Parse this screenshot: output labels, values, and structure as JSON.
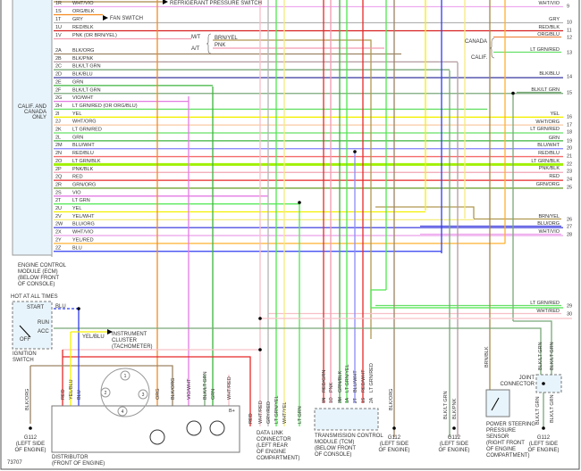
{
  "figure_id": "73707",
  "colors": {
    "VIO": "#e37be3",
    "ORG": "#f58a1f",
    "GRY": "#b4b4b4",
    "RED": "#e82828",
    "PNK": "#f29ab0",
    "BLK/ORG": "#9c8464",
    "BLK/PNK": "#b49ca0",
    "BLK/LT GRN": "#78a878",
    "BLK/BLU": "#4848a8",
    "GRN": "#3cb43c",
    "LT GRN": "#4ee84e",
    "YEL": "#f4f000",
    "WHT/ORG": "#f8caa4",
    "BLU": "#2f3cf0",
    "BRN": "#a88848",
    "YEL/WHT": "#f4ec80",
    "BLU/ORG": "#5050e0",
    "YEL/RED": "#ffb030",
    "PNK/BLK": "#f0a4b4",
    "GRN/ORG": "#74a434",
    "WHT/RED": "#f6c0c8",
    "BLU/WHT": "#8c8cf8",
    "RED/BLU": "#f46a6a",
    "LT GRN/BLK": "#a0f000",
    "WHT/VIO": "#eeaaee",
    "RED/BLK": "#d82020",
    "ORG/BLU": "#f08848",
    "LT GRN/RED": "#66e066",
    "BRN/YEL": "#b09850",
    "BLK": "#222222",
    "box": "#e8f4fb"
  },
  "ecm": {
    "label": [
      "ENGINE CONTROL",
      "MODULE (ECM)",
      "(BELOW FRONT",
      "OF CONSOLE)"
    ],
    "calif_note": [
      "CALIF. AND",
      "CANADA",
      "ONLY"
    ],
    "pins": [
      {
        "pin": "1R",
        "wire": "WHT/VIO"
      },
      {
        "pin": "1S",
        "wire": "ORG/BLK"
      },
      {
        "pin": "1T",
        "wire": "GRY"
      },
      {
        "pin": "1U",
        "wire": "RED/BLK"
      },
      {
        "pin": "1V",
        "wire": "PNK (OR BRN/YEL)"
      },
      {
        "pin": "2A",
        "wire": "BLK/ORG"
      },
      {
        "pin": "2B",
        "wire": "BLK/PNK"
      },
      {
        "pin": "2C",
        "wire": "BLK/LT GRN"
      },
      {
        "pin": "2D",
        "wire": "BLK/BLU"
      },
      {
        "pin": "2E",
        "wire": "GRN"
      },
      {
        "pin": "2F",
        "wire": "BLK/LT GRN"
      },
      {
        "pin": "2G",
        "wire": "VIO/WHT"
      },
      {
        "pin": "2H",
        "wire": "LT GRN/RED (OR ORG/BLU)"
      },
      {
        "pin": "2I",
        "wire": "YEL"
      },
      {
        "pin": "2J",
        "wire": "WHT/ORG"
      },
      {
        "pin": "2K",
        "wire": "LT GRN/RED"
      },
      {
        "pin": "2L",
        "wire": "GRN"
      },
      {
        "pin": "2M",
        "wire": "BLU/WHT"
      },
      {
        "pin": "2N",
        "wire": "RED/BLU"
      },
      {
        "pin": "2O",
        "wire": "LT GRN/BLK"
      },
      {
        "pin": "2P",
        "wire": "PNK/BLK"
      },
      {
        "pin": "2Q",
        "wire": "RED"
      },
      {
        "pin": "2R",
        "wire": "GRN/ORG"
      },
      {
        "pin": "2S",
        "wire": "VIO"
      },
      {
        "pin": "2T",
        "wire": "LT GRN"
      },
      {
        "pin": "2U",
        "wire": "YEL"
      },
      {
        "pin": "2V",
        "wire": "YEL/WHT"
      },
      {
        "pin": "2W",
        "wire": "BLU/ORG"
      },
      {
        "pin": "2X",
        "wire": "WHT/VIO"
      },
      {
        "pin": "2Y",
        "wire": "YEL/RED"
      },
      {
        "pin": "2Z",
        "wire": "BLU"
      }
    ]
  },
  "refrigerant_switch": "REFRIGERANT PRESSURE SWITCH",
  "fan_switch": "FAN SWITCH",
  "trans_option": {
    "mt": "M/T",
    "at": "A/T",
    "mt_wire": "BRN/YEL",
    "at_wire": "PNK"
  },
  "region_option": {
    "canada": "CANADA",
    "calif": "CALIF."
  },
  "right_wires": [
    {
      "wire": "WHT/VIO",
      "num": "9"
    },
    {
      "wire": "GRY",
      "num": "10"
    },
    {
      "wire": "RED/BLK",
      "num": "11"
    },
    {
      "wire": "ORG/BLU",
      "num": "12"
    },
    {
      "wire": "LT GRN/RED",
      "num": "13"
    },
    {
      "wire": "BLK/BLU",
      "num": "14"
    },
    {
      "wire": "BLK/LT GRN",
      "num": "15"
    },
    {
      "wire": "YEL",
      "num": "16"
    },
    {
      "wire": "WHT/ORG",
      "num": "17"
    },
    {
      "wire": "LT GRN/RED",
      "num": "18"
    },
    {
      "wire": "GRN",
      "num": "19"
    },
    {
      "wire": "BLU/WHT",
      "num": "20"
    },
    {
      "wire": "RED/BLU",
      "num": "21"
    },
    {
      "wire": "LT GRN/BLK",
      "num": "22"
    },
    {
      "wire": "PNK/BLK",
      "num": "23"
    },
    {
      "wire": "RED",
      "num": "24"
    },
    {
      "wire": "GRN/ORG",
      "num": "25"
    },
    {
      "wire": "BRN/YEL",
      "num": "26"
    },
    {
      "wire": "BLU/ORG",
      "num": "27"
    },
    {
      "wire": "WHT/VIO",
      "num": "28"
    },
    {
      "wire": "LT GRN/RED",
      "num": "29"
    },
    {
      "wire": "WHT/RED",
      "num": "30"
    }
  ],
  "ignition": {
    "hot_label": "HOT AT ALL TIMES",
    "start": "START",
    "run": "RUN",
    "acc": "ACC",
    "off": "OFF",
    "wire": "BLU",
    "label": [
      "IGNITION",
      "SWITCH"
    ]
  },
  "instrument_cluster": {
    "wire": "YEL/BLU",
    "label": [
      "INSTRUMENT",
      "CLUSTER",
      "(TACHOMETER)"
    ]
  },
  "distributor": {
    "wires": [
      "RED",
      "YEL/BLU",
      "BLU",
      "ORG",
      "BLK/ORG",
      "VIO/WHT",
      "BLK/LT GRN",
      "GRN",
      "WHT/RED"
    ],
    "terminal_bplus": "B+",
    "cap_numbers": [
      "1",
      "2",
      "3",
      "4"
    ],
    "label": [
      "DISTRIBUTOR",
      "(FRONT OF ENGINE)"
    ]
  },
  "dlc": {
    "wires": [
      "RED",
      "WHT/RED",
      "GRY/RED",
      "LT GRN/YEL",
      "WHT/YEL",
      "LT GRN"
    ],
    "label": [
      "DATA LINK",
      "CONNECTOR",
      "(LEFT REAR",
      "OF ENGINE",
      "COMPARTMENT)"
    ]
  },
  "tcm": {
    "pins": [
      {
        "pin": "1N",
        "wire": "RED/GRN"
      },
      {
        "pin": "1O",
        "wire": "PNK"
      },
      {
        "pin": "3M",
        "wire": "GRN/BLK"
      },
      {
        "pin": "1A",
        "wire": "LT GRN/YEL"
      },
      {
        "pin": "2T",
        "wire": "BLU/WHT"
      },
      {
        "pin": "1S",
        "wire": "RED/WHT"
      },
      {
        "pin": "2A",
        "wire": "LT GRN/RED"
      }
    ],
    "label": [
      "TRANSMISSION CONTROL",
      "MODULE (TCM)",
      "(BELOW FRONT",
      "OF CONSOLE)"
    ]
  },
  "grounds": [
    {
      "wire": "BLK/ORG",
      "name": "G112",
      "loc": [
        "(LEFT SIDE",
        "OF ENGINE)"
      ]
    },
    {
      "wire": "BLK/ORG",
      "name": "G112",
      "loc": [
        "(LEFT SIDE",
        "OF ENGINE)"
      ]
    },
    {
      "wire": "BLK/LT GRN",
      "wire2": "BLK/PNK",
      "name": "G112",
      "loc": [
        "(LEFT SIDE",
        "OF ENGINE)"
      ]
    },
    {
      "wire": "BLK/LT GRN",
      "name": "G112",
      "loc": [
        "(LEFT SIDE",
        "OF ENGINE)"
      ]
    }
  ],
  "ps_sensor": {
    "wire": "BRN/BLK",
    "label": [
      "POWER STEERING",
      "PRESSURE",
      "SENSOR",
      "(RIGHT FRONT",
      "OF ENGINE",
      "COMPARTMENT)"
    ]
  },
  "joint_connector": {
    "label": [
      "JOINT",
      "CONNECTOR"
    ],
    "wires": [
      "BLK/LT GRN",
      "BLK/LT GRN"
    ],
    "out_wire": "BLK/LT GRN"
  }
}
